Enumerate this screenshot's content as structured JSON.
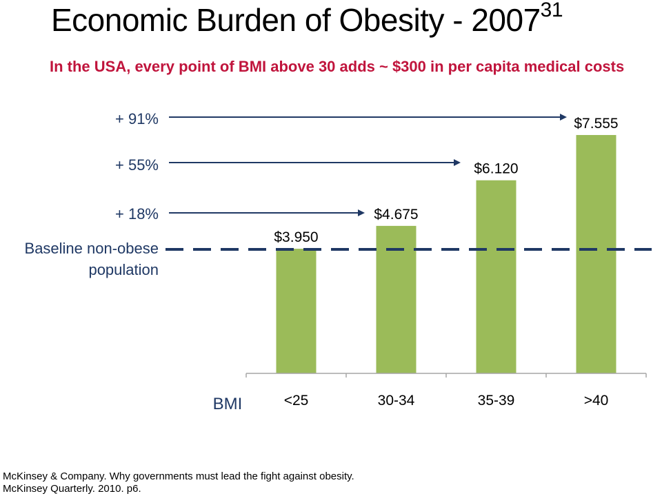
{
  "slide": {
    "title": "Economic Burden of Obesity - 2007",
    "title_sup": "31",
    "subtitle": "In the USA, every point of BMI above 30 adds ~ $300 in per capita medical costs",
    "footer_line1": "McKinsey & Company. Why governments must lead the fight against obesity.",
    "footer_line2": "McKinsey Quarterly. 2010. p6."
  },
  "labels": {
    "plus91": "+ 91%",
    "plus55": "+ 55%",
    "plus18": "+ 18%",
    "baseline": "Baseline non-obese population"
  },
  "chart_data": {
    "type": "bar",
    "title": "Economic Burden of Obesity - 2007",
    "xlabel": "BMI",
    "ylabel": "",
    "categories": [
      "<25",
      "30-34",
      "35-39",
      ">40"
    ],
    "values": [
      3.95,
      4.675,
      6.12,
      7.555
    ],
    "value_labels": [
      "$3.950",
      "$4.675",
      "$6.120",
      "$7.555"
    ],
    "baseline_value": 3.95,
    "annotations": [
      "+ 18%",
      "+ 55%",
      "+ 91%"
    ],
    "color": "#9bbb59",
    "ylim": [
      0,
      8
    ]
  },
  "colors": {
    "bar": "#9bbb59",
    "annotation": "#1f3864",
    "subtitle": "#c0143c"
  }
}
